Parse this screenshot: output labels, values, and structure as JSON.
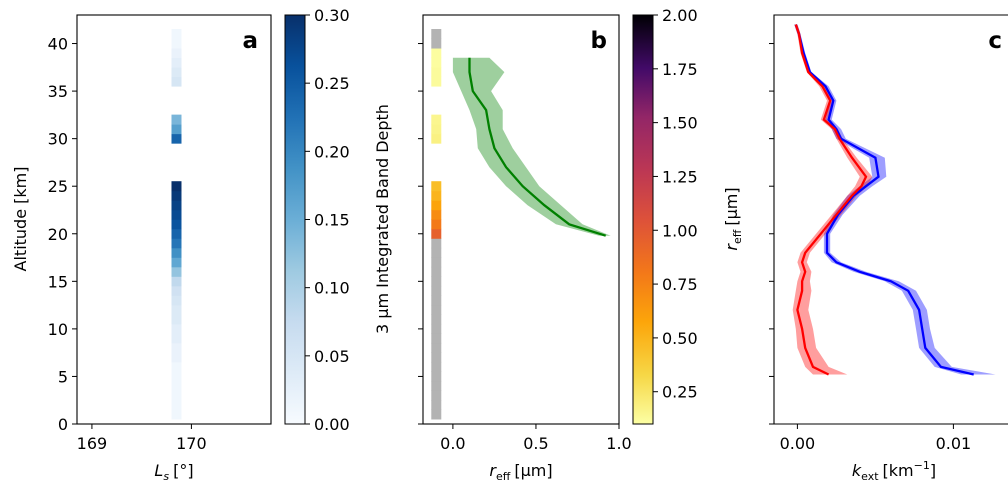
{
  "chart_data": [
    {
      "type": "scatter",
      "panel_label": "a",
      "ylabel": "Altitude [km]",
      "xlabel_main": "L",
      "xlabel_sub": "s",
      "xlabel_unit": "[°]",
      "xticks": [
        169,
        170
      ],
      "xlim": [
        168.85,
        170.8
      ],
      "yticks": [
        0,
        5,
        10,
        15,
        20,
        25,
        30,
        35,
        40
      ],
      "ylim": [
        0,
        43
      ],
      "markers": {
        "x": 169.85,
        "altitudes": [
          1,
          2,
          3,
          4,
          5,
          6,
          7,
          8,
          9,
          10,
          11,
          12,
          13,
          14,
          15,
          16,
          17,
          18,
          19,
          20,
          21,
          22,
          23,
          24,
          25,
          30,
          31,
          32,
          36,
          37,
          38,
          39,
          40,
          41
        ],
        "values": [
          0.01,
          0.01,
          0.01,
          0.01,
          0.01,
          0.01,
          0.02,
          0.02,
          0.03,
          0.03,
          0.04,
          0.04,
          0.05,
          0.06,
          0.08,
          0.12,
          0.16,
          0.19,
          0.22,
          0.24,
          0.26,
          0.27,
          0.28,
          0.29,
          0.3,
          0.24,
          0.17,
          0.14,
          0.05,
          0.04,
          0.03,
          0.02,
          0.01,
          0.01
        ]
      },
      "colorbar": {
        "label": "3 μm Integrated Band Depth",
        "ticks": [
          "0.00",
          "0.05",
          "0.10",
          "0.15",
          "0.20",
          "0.25",
          "0.30"
        ],
        "range": [
          0,
          0.3
        ],
        "colormap": "Blues"
      }
    },
    {
      "type": "line",
      "panel_label": "b",
      "xlabel_main": "r",
      "xlabel_sub": "eff",
      "xlabel_unit": "[μm]",
      "xticks": [
        "0.0",
        "0.5",
        "1.0"
      ],
      "xlim": [
        -0.18,
        1.0
      ],
      "ylim": [
        0,
        43
      ],
      "series": [
        {
          "color": "#008000",
          "altitude": [
            19.8,
            21,
            23,
            25,
            27,
            29,
            31,
            33,
            35,
            37,
            38.5
          ],
          "reff": [
            0.92,
            0.7,
            0.55,
            0.42,
            0.32,
            0.25,
            0.22,
            0.2,
            0.12,
            0.1,
            0.1
          ],
          "reff_low": [
            0.88,
            0.62,
            0.45,
            0.32,
            0.22,
            0.15,
            0.14,
            0.1,
            0.05,
            0.0,
            0.0
          ],
          "reff_high": [
            0.95,
            0.78,
            0.65,
            0.52,
            0.44,
            0.36,
            0.3,
            0.3,
            0.23,
            0.31,
            0.22
          ]
        }
      ],
      "markers": {
        "x": -0.1,
        "altitudes": [
          1,
          2,
          3,
          4,
          5,
          6,
          7,
          8,
          9,
          10,
          11,
          12,
          13,
          14,
          15,
          16,
          17,
          18,
          19,
          20,
          21,
          22,
          23,
          24,
          25,
          30,
          31,
          32,
          36,
          37,
          38,
          39,
          40,
          41
        ],
        "reff": [
          null,
          null,
          null,
          null,
          null,
          null,
          null,
          null,
          null,
          null,
          null,
          null,
          null,
          null,
          null,
          null,
          null,
          null,
          null,
          0.95,
          0.8,
          0.7,
          0.58,
          0.5,
          0.45,
          0.18,
          0.16,
          0.15,
          0.12,
          0.12,
          0.11,
          0.11,
          null,
          null
        ]
      },
      "colorbar": {
        "label_main": "r",
        "label_sub": "eff",
        "label_unit": "[μm]",
        "ticks": [
          "0.25",
          "0.50",
          "0.75",
          "1.00",
          "1.25",
          "1.50",
          "1.75",
          "2.00"
        ],
        "range": [
          0.1,
          2.0
        ],
        "colormap": "inferno_r",
        "missing_color": "#b3b3b3"
      }
    },
    {
      "type": "line",
      "panel_label": "c",
      "xlabel_main": "k",
      "xlabel_sub": "ext",
      "xlabel_unit": "[km",
      "xlabel_sup": "−1",
      "xlabel_close": "]",
      "xticks": [
        "0.00",
        "0.01"
      ],
      "xlim": [
        -0.0015,
        0.0135
      ],
      "ylim": [
        0,
        43
      ],
      "series": [
        {
          "color": "#0000ff",
          "altitude": [
            5.2,
            6,
            8,
            10,
            12,
            14,
            15,
            16,
            17,
            18,
            20,
            22,
            24,
            25,
            26,
            28,
            30,
            31,
            32,
            34,
            35.5,
            37,
            39,
            41,
            41.5,
            42
          ],
          "k": [
            0.0113,
            0.0092,
            0.0082,
            0.008,
            0.0078,
            0.0071,
            0.006,
            0.004,
            0.0025,
            0.0019,
            0.0019,
            0.0026,
            0.0036,
            0.0044,
            0.0052,
            0.005,
            0.0028,
            0.0025,
            0.002,
            0.0023,
            0.0018,
            0.0008,
            0.0004,
            0.0001,
            0.0,
            -0.0001
          ],
          "k_low": [
            0.0105,
            0.0088,
            0.0078,
            0.0076,
            0.0074,
            0.0067,
            0.0056,
            0.0036,
            0.0022,
            0.0017,
            0.0017,
            0.0023,
            0.0032,
            0.004,
            0.0048,
            0.0046,
            0.0025,
            0.0022,
            0.0018,
            0.0021,
            0.0016,
            0.0007,
            0.0003,
            0.0,
            -0.0001,
            -0.0002
          ],
          "k_high": [
            0.0127,
            0.0099,
            0.0088,
            0.0085,
            0.0083,
            0.0076,
            0.0065,
            0.0044,
            0.0028,
            0.0021,
            0.0021,
            0.0029,
            0.004,
            0.0048,
            0.0057,
            0.0056,
            0.0031,
            0.0028,
            0.0022,
            0.0025,
            0.002,
            0.0009,
            0.0005,
            0.0002,
            0.0001,
            0.0
          ]
        },
        {
          "color": "#ff0000",
          "altitude": [
            5.2,
            6,
            8,
            10,
            12,
            14,
            15,
            16,
            17,
            18,
            20,
            22,
            24,
            25,
            26,
            28,
            30,
            31,
            32,
            34,
            35.5,
            37,
            39,
            41,
            41.5,
            42
          ],
          "k": [
            0.002,
            0.001,
            0.0005,
            0.0003,
            0.0,
            0.0003,
            0.0003,
            0.0005,
            0.0003,
            0.0005,
            0.0015,
            0.0025,
            0.0035,
            0.0041,
            0.0044,
            0.0035,
            0.0027,
            0.0024,
            0.0017,
            0.0021,
            0.0016,
            0.0007,
            0.0003,
            0.0001,
            0.0,
            -0.0001
          ],
          "k_low": [
            0.001,
            0.0005,
            0.0,
            -0.0001,
            -0.0003,
            -0.0001,
            0.0,
            0.0002,
            0.0,
            0.0002,
            0.0012,
            0.0022,
            0.0032,
            0.0037,
            0.004,
            0.0032,
            0.0025,
            0.0022,
            0.0015,
            0.0019,
            0.0014,
            0.0006,
            0.0002,
            0.0,
            -0.0001,
            -0.0002
          ],
          "k_high": [
            0.0032,
            0.002,
            0.0012,
            0.001,
            0.0007,
            0.0009,
            0.0008,
            0.0009,
            0.0006,
            0.0008,
            0.0018,
            0.0028,
            0.0038,
            0.0045,
            0.0048,
            0.0038,
            0.0029,
            0.0026,
            0.0019,
            0.0023,
            0.0018,
            0.0008,
            0.0004,
            0.0002,
            0.0001,
            0.0
          ]
        }
      ]
    }
  ]
}
